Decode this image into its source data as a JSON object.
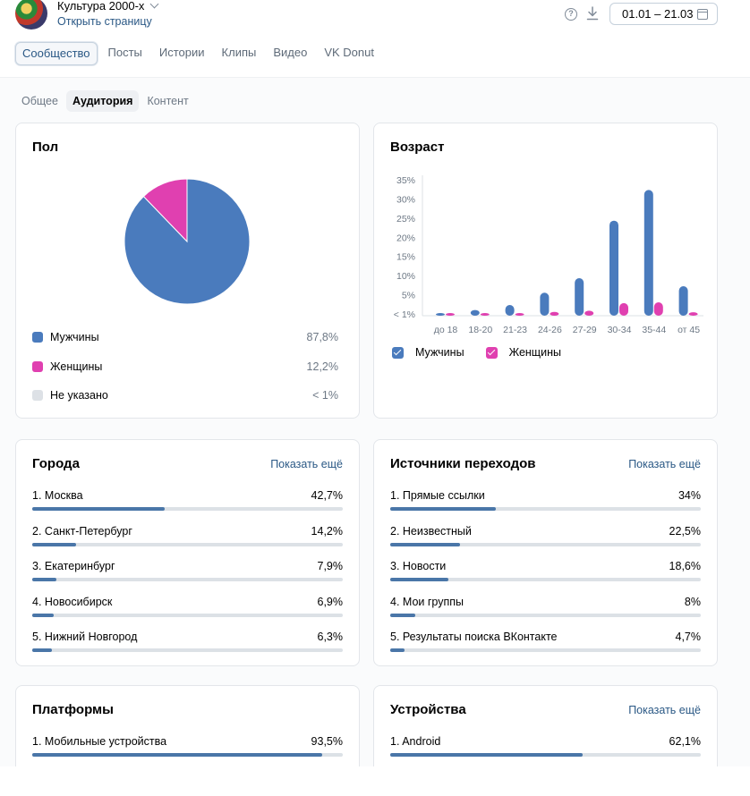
{
  "header": {
    "community_name": "Культура 2000-х",
    "open_page": "Открыть страницу",
    "date_range": "01.01 – 21.03"
  },
  "main_tabs": [
    {
      "label": "Сообщество",
      "active": true
    },
    {
      "label": "Посты",
      "active": false
    },
    {
      "label": "Истории",
      "active": false
    },
    {
      "label": "Клипы",
      "active": false
    },
    {
      "label": "Видео",
      "active": false
    },
    {
      "label": "VK Donut",
      "active": false
    }
  ],
  "sub_tabs": [
    {
      "label": "Общее",
      "active": false
    },
    {
      "label": "Аудитория",
      "active": true
    },
    {
      "label": "Контент",
      "active": false
    }
  ],
  "colors": {
    "male": "#4a7bbd",
    "female": "#e040b0",
    "unknown": "#dde1e6",
    "bar_fill": "#4a76a8",
    "link": "#2a5885"
  },
  "gender": {
    "title": "Пол",
    "items": [
      {
        "label": "Мужчины",
        "value": "87,8%",
        "share": 87.8
      },
      {
        "label": "Женщины",
        "value": "12,2%",
        "share": 12.2
      },
      {
        "label": "Не указано",
        "value": "< 1%",
        "share": 0
      }
    ]
  },
  "age": {
    "title": "Возраст",
    "legend": {
      "male": "Мужчины",
      "female": "Женщины"
    },
    "chart_data": {
      "type": "bar",
      "categories": [
        "до 18",
        "18-20",
        "21-23",
        "24-26",
        "27-29",
        "30-34",
        "35-44",
        "от 45"
      ],
      "y_ticks": [
        "35%",
        "30%",
        "25%",
        "20%",
        "15%",
        "10%",
        "5%",
        "< 1%"
      ],
      "ylim": [
        0,
        35
      ],
      "series": [
        {
          "name": "Мужчины",
          "values": [
            0.5,
            1.5,
            2.8,
            6.0,
            9.8,
            24.8,
            32.8,
            7.7
          ]
        },
        {
          "name": "Женщины",
          "values": [
            0.2,
            0.4,
            0.6,
            1.0,
            1.3,
            3.3,
            3.5,
            0.9
          ]
        }
      ]
    }
  },
  "cities": {
    "title": "Города",
    "show_more": "Показать ещё",
    "items": [
      {
        "label": "1. Москва",
        "value": "42,7%",
        "share": 42.7
      },
      {
        "label": "2. Санкт-Петербург",
        "value": "14,2%",
        "share": 14.2
      },
      {
        "label": "3. Екатеринбург",
        "value": "7,9%",
        "share": 7.9
      },
      {
        "label": "4. Новосибирск",
        "value": "6,9%",
        "share": 6.9
      },
      {
        "label": "5. Нижний Новгород",
        "value": "6,3%",
        "share": 6.3
      }
    ]
  },
  "sources": {
    "title": "Источники переходов",
    "show_more": "Показать ещё",
    "items": [
      {
        "label": "1. Прямые ссылки",
        "value": "34%",
        "share": 34
      },
      {
        "label": "2. Неизвестный",
        "value": "22,5%",
        "share": 22.5
      },
      {
        "label": "3. Новости",
        "value": "18,6%",
        "share": 18.6
      },
      {
        "label": "4. Мои группы",
        "value": "8%",
        "share": 8
      },
      {
        "label": "5. Результаты поиска ВКонтакте",
        "value": "4,7%",
        "share": 4.7
      }
    ]
  },
  "platforms": {
    "title": "Платформы",
    "items": [
      {
        "label": "1. Мобильные устройства",
        "value": "93,5%",
        "share": 93.5
      }
    ]
  },
  "devices": {
    "title": "Устройства",
    "show_more": "Показать ещё",
    "items": [
      {
        "label": "1. Android",
        "value": "62,1%",
        "share": 62.1
      }
    ]
  }
}
